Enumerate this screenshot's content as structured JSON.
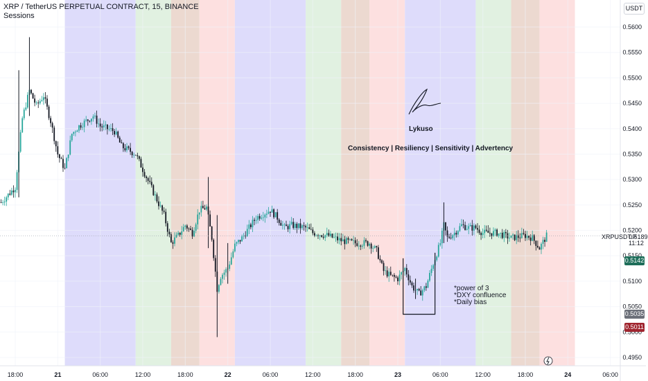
{
  "header": {
    "title": "XRP / TetherUS PERPETUAL CONTRACT, 15, BINANCE",
    "indicator": "Sessions"
  },
  "currency_button": "USDT",
  "annotations": {
    "author": "Lykuso",
    "motto": "Consistency | Resiliency | Sensitivity | Advertency",
    "notes": [
      "*power of 3",
      "*DXY confluence",
      "*Daily bias"
    ]
  },
  "price_scale": {
    "ticks": [
      "0.5600",
      "0.5550",
      "0.5500",
      "0.5450",
      "0.5400",
      "0.5350",
      "0.5300",
      "0.5250",
      "0.5200",
      "0.5150",
      "0.5100",
      "0.5050",
      "0.5000",
      "0.4950"
    ],
    "symbol_label": "XRPUSDT.P",
    "last_price": "0.5189",
    "countdown": "11:12",
    "tags": [
      {
        "value": "0.5142",
        "color": "#1e6e5a"
      },
      {
        "value": "0.5035",
        "color": "#6b6f79"
      },
      {
        "value": "0.5011",
        "color": "#a0252f"
      }
    ]
  },
  "time_axis": {
    "labels": [
      "18:00",
      "21",
      "06:00",
      "12:00",
      "18:00",
      "22",
      "06:00",
      "12:00",
      "18:00",
      "23",
      "06:00",
      "12:00",
      "18:00",
      "24",
      "06:00"
    ]
  },
  "colors": {
    "up": "#26a69a",
    "down": "#131722",
    "asia": "#dedcfb",
    "london": "#e1f1e1",
    "overlap": "#ecd9d0",
    "newyork": "#fde0e0"
  },
  "chart_data": {
    "type": "candlestick",
    "title": "XRP / TetherUS PERPETUAL CONTRACT, 15, BINANCE",
    "interval": "15",
    "x_range": [
      "2023-09-20 18:00",
      "2023-09-24 06:00"
    ],
    "ylim": [
      0.4935,
      0.5625
    ],
    "ticks": [
      0.56,
      0.555,
      0.55,
      0.545,
      0.54,
      0.535,
      0.53,
      0.525,
      0.52,
      0.515,
      0.51,
      0.505,
      0.5,
      0.495
    ],
    "last_price": 0.5189,
    "price_lines": [
      0.5142,
      0.5035,
      0.5011
    ],
    "sessions": [
      {
        "day": "21",
        "sequence": [
          "asia",
          "london",
          "overlap",
          "newyork"
        ]
      },
      {
        "day": "22",
        "sequence": [
          "asia",
          "london",
          "overlap",
          "newyork"
        ]
      },
      {
        "day": "23",
        "sequence": [
          "asia",
          "london",
          "overlap",
          "newyork"
        ]
      }
    ],
    "close_path": [
      {
        "t": "20 16:00",
        "p": 0.5255
      },
      {
        "t": "20 17:00",
        "p": 0.527
      },
      {
        "t": "20 18:00",
        "p": 0.5285
      },
      {
        "t": "20 19:00",
        "p": 0.542
      },
      {
        "t": "20 20:00",
        "p": 0.5475
      },
      {
        "t": "20 21:00",
        "p": 0.5445
      },
      {
        "t": "20 22:00",
        "p": 0.5465
      },
      {
        "t": "20 23:00",
        "p": 0.5415
      },
      {
        "t": "21 00:00",
        "p": 0.535
      },
      {
        "t": "21 01:00",
        "p": 0.532
      },
      {
        "t": "21 02:00",
        "p": 0.539
      },
      {
        "t": "21 03:00",
        "p": 0.5405
      },
      {
        "t": "21 05:00",
        "p": 0.5425
      },
      {
        "t": "21 06:00",
        "p": 0.5405
      },
      {
        "t": "21 08:00",
        "p": 0.5395
      },
      {
        "t": "21 09:00",
        "p": 0.5365
      },
      {
        "t": "21 11:00",
        "p": 0.535
      },
      {
        "t": "21 12:00",
        "p": 0.532
      },
      {
        "t": "21 13:00",
        "p": 0.529
      },
      {
        "t": "21 15:00",
        "p": 0.523
      },
      {
        "t": "21 16:00",
        "p": 0.5175
      },
      {
        "t": "21 17:00",
        "p": 0.519
      },
      {
        "t": "21 18:00",
        "p": 0.521
      },
      {
        "t": "21 19:00",
        "p": 0.5195
      },
      {
        "t": "21 20:00",
        "p": 0.524
      },
      {
        "t": "21 21:00",
        "p": 0.5245
      },
      {
        "t": "21 21:45",
        "p": 0.5185
      },
      {
        "t": "21 22:30",
        "p": 0.5085
      },
      {
        "t": "21 23:00",
        "p": 0.511
      },
      {
        "t": "22 00:00",
        "p": 0.5125
      },
      {
        "t": "22 01:00",
        "p": 0.517
      },
      {
        "t": "22 02:00",
        "p": 0.5185
      },
      {
        "t": "22 03:00",
        "p": 0.5205
      },
      {
        "t": "22 04:00",
        "p": 0.5225
      },
      {
        "t": "22 06:00",
        "p": 0.524
      },
      {
        "t": "22 07:00",
        "p": 0.5225
      },
      {
        "t": "22 08:00",
        "p": 0.5205
      },
      {
        "t": "22 09:00",
        "p": 0.521
      },
      {
        "t": "22 11:00",
        "p": 0.5205
      },
      {
        "t": "22 12:00",
        "p": 0.5195
      },
      {
        "t": "22 14:00",
        "p": 0.519
      },
      {
        "t": "22 16:00",
        "p": 0.518
      },
      {
        "t": "22 18:00",
        "p": 0.5175
      },
      {
        "t": "22 20:00",
        "p": 0.5175
      },
      {
        "t": "22 21:00",
        "p": 0.516
      },
      {
        "t": "22 22:00",
        "p": 0.512
      },
      {
        "t": "22 23:00",
        "p": 0.511
      },
      {
        "t": "23 00:00",
        "p": 0.5105
      },
      {
        "t": "23 01:00",
        "p": 0.5125
      },
      {
        "t": "23 02:00",
        "p": 0.509
      },
      {
        "t": "23 03:00",
        "p": 0.5075
      },
      {
        "t": "23 04:00",
        "p": 0.509
      },
      {
        "t": "23 05:00",
        "p": 0.5135
      },
      {
        "t": "23 06:00",
        "p": 0.5175
      },
      {
        "t": "23 06:30",
        "p": 0.521
      },
      {
        "t": "23 07:00",
        "p": 0.5185
      },
      {
        "t": "23 08:00",
        "p": 0.5195
      },
      {
        "t": "23 09:00",
        "p": 0.521
      },
      {
        "t": "23 10:00",
        "p": 0.5205
      },
      {
        "t": "23 11:00",
        "p": 0.5205
      },
      {
        "t": "23 12:00",
        "p": 0.5195
      },
      {
        "t": "23 14:00",
        "p": 0.5195
      },
      {
        "t": "23 16:00",
        "p": 0.5185
      },
      {
        "t": "23 18:00",
        "p": 0.519
      },
      {
        "t": "23 19:00",
        "p": 0.5185
      },
      {
        "t": "23 20:00",
        "p": 0.5165
      },
      {
        "t": "23 21:00",
        "p": 0.5189
      }
    ],
    "spikes": [
      {
        "t": "20 18:30",
        "low": 0.5265,
        "high": 0.5515
      },
      {
        "t": "20 20:00",
        "low": 0.5425,
        "high": 0.558
      },
      {
        "t": "21 21:15",
        "low": 0.5165,
        "high": 0.5305
      },
      {
        "t": "21 22:30",
        "low": 0.499,
        "high": 0.523
      },
      {
        "t": "22 00:00",
        "low": 0.5095,
        "high": 0.5175
      },
      {
        "t": "23 02:30",
        "low": 0.5065,
        "high": 0.5105
      },
      {
        "t": "23 06:30",
        "low": 0.5175,
        "high": 0.5255
      }
    ]
  }
}
